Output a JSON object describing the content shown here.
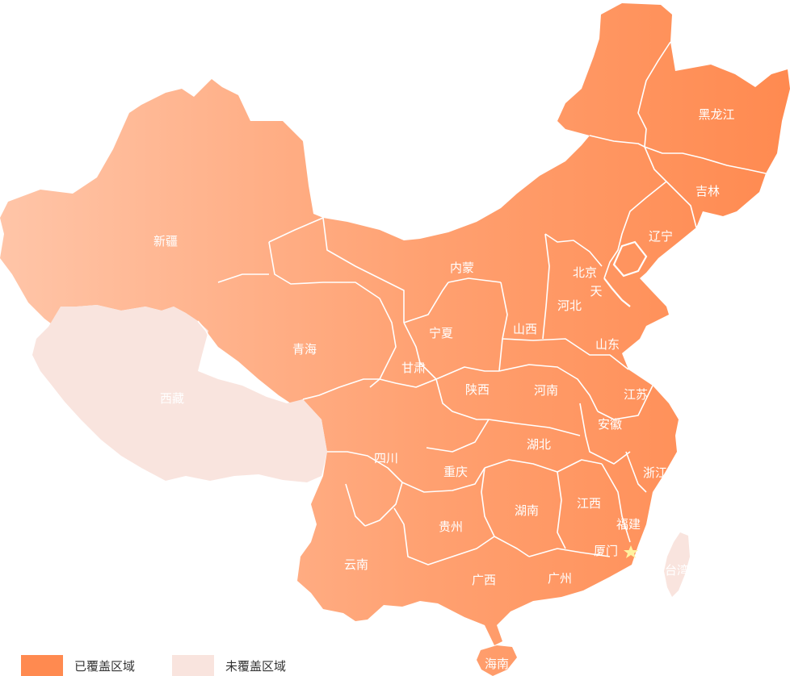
{
  "colors": {
    "covered_dark": "#ff8a50",
    "covered_light": "#ffc5a8",
    "uncovered": "#f9e4de",
    "border": "#ffffff",
    "star": "#fff3a0"
  },
  "regions": [
    {
      "key": "heilongjiang",
      "name": "黑龙江",
      "covered": true
    },
    {
      "key": "jilin",
      "name": "吉林",
      "covered": true
    },
    {
      "key": "liaoning",
      "name": "辽宁",
      "covered": true
    },
    {
      "key": "neimenggu",
      "name": "内蒙",
      "covered": true
    },
    {
      "key": "beijing",
      "name": "北京",
      "covered": true
    },
    {
      "key": "tianjin",
      "name": "天",
      "covered": true
    },
    {
      "key": "hebei",
      "name": "河北",
      "covered": true
    },
    {
      "key": "shanxi",
      "name": "山西",
      "covered": true
    },
    {
      "key": "shandong",
      "name": "山东",
      "covered": true
    },
    {
      "key": "xinjiang",
      "name": "新疆",
      "covered": true
    },
    {
      "key": "qinghai",
      "name": "青海",
      "covered": true
    },
    {
      "key": "xizang",
      "name": "西藏",
      "covered": false
    },
    {
      "key": "ningxia",
      "name": "宁夏",
      "covered": true
    },
    {
      "key": "gansu",
      "name": "甘肃",
      "covered": true
    },
    {
      "key": "shaanxi",
      "name": "陕西",
      "covered": true
    },
    {
      "key": "henan",
      "name": "河南",
      "covered": true
    },
    {
      "key": "jiangsu",
      "name": "江苏",
      "covered": true
    },
    {
      "key": "anhui",
      "name": "安徽",
      "covered": true
    },
    {
      "key": "sichuan",
      "name": "四川",
      "covered": true
    },
    {
      "key": "hubei",
      "name": "湖北",
      "covered": true
    },
    {
      "key": "chongqing",
      "name": "重庆",
      "covered": true
    },
    {
      "key": "zhejiang",
      "name": "浙江",
      "covered": true
    },
    {
      "key": "hunan",
      "name": "湖南",
      "covered": true
    },
    {
      "key": "jiangxi",
      "name": "江西",
      "covered": true
    },
    {
      "key": "guizhou",
      "name": "贵州",
      "covered": true
    },
    {
      "key": "fujian",
      "name": "福建",
      "covered": true
    },
    {
      "key": "yunnan",
      "name": "云南",
      "covered": true
    },
    {
      "key": "guangxi",
      "name": "广西",
      "covered": true
    },
    {
      "key": "guangdong",
      "name": "广州",
      "covered": true
    },
    {
      "key": "taiwan",
      "name": "台湾",
      "covered": false
    },
    {
      "key": "hainan",
      "name": "海南",
      "covered": true
    }
  ],
  "marker": {
    "name": "厦门",
    "icon": "star-icon"
  },
  "legend": {
    "covered_label": "已覆盖区域",
    "uncovered_label": "未覆盖区域"
  }
}
